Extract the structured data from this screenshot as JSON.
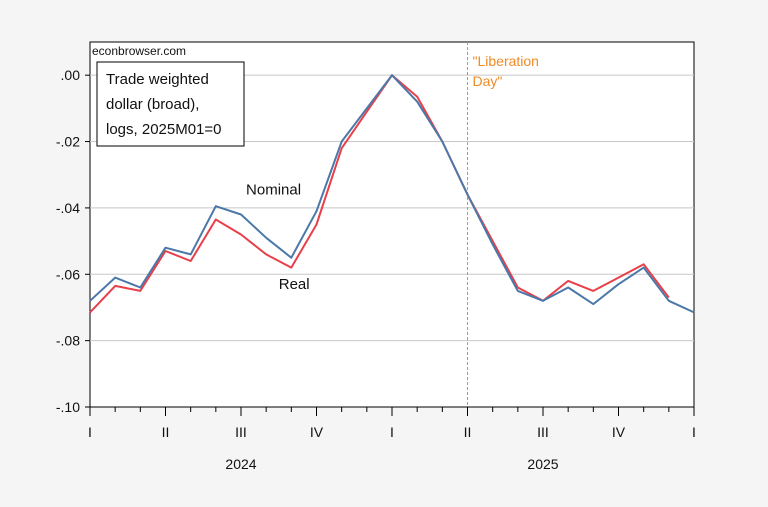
{
  "chart_data": {
    "type": "line",
    "source_note": "econbrowser.com",
    "legend_lines": [
      "Trade weighted",
      "dollar (broad),",
      "logs, 2025M01=0"
    ],
    "ylim": [
      -0.1,
      0.01
    ],
    "yticks": [
      0.0,
      -0.02,
      -0.04,
      -0.06,
      -0.08,
      -0.1
    ],
    "ytick_labels": [
      ".00",
      "-.02",
      "-.04",
      "-.06",
      "-.08",
      "-.10"
    ],
    "grid": "horizontal",
    "x_quarter_ticks": [
      {
        "month_index": 0,
        "label": "I"
      },
      {
        "month_index": 3,
        "label": "II"
      },
      {
        "month_index": 6,
        "label": "III"
      },
      {
        "month_index": 9,
        "label": "IV"
      },
      {
        "month_index": 12,
        "label": "I"
      },
      {
        "month_index": 15,
        "label": "II"
      },
      {
        "month_index": 18,
        "label": "III"
      },
      {
        "month_index": 21,
        "label": "IV"
      },
      {
        "month_index": 24,
        "label": "I"
      }
    ],
    "x_years": [
      {
        "label": "2024",
        "center_month_index": 6
      },
      {
        "label": "2025",
        "center_month_index": 18
      }
    ],
    "x": [
      "2024M01",
      "2024M02",
      "2024M03",
      "2024M04",
      "2024M05",
      "2024M06",
      "2024M07",
      "2024M08",
      "2024M09",
      "2024M10",
      "2024M11",
      "2024M12",
      "2025M01",
      "2025M02",
      "2025M03",
      "2025M04",
      "2025M05",
      "2025M06",
      "2025M07",
      "2025M08",
      "2025M09",
      "2025M10",
      "2025M11",
      "2025M12",
      "2026M01"
    ],
    "series": [
      {
        "name": "Nominal",
        "color": "#4a78a8",
        "label_position_month": 6.2,
        "label_y": -0.036,
        "values": [
          -0.068,
          -0.061,
          -0.064,
          -0.052,
          -0.054,
          -0.0395,
          -0.042,
          -0.049,
          -0.055,
          -0.041,
          -0.02,
          -0.01,
          0.0,
          -0.008,
          -0.02,
          -0.036,
          -0.051,
          -0.065,
          -0.068,
          -0.064,
          -0.069,
          -0.063,
          -0.058,
          -0.068,
          -0.0715
        ]
      },
      {
        "name": "Real",
        "color": "#e8404a",
        "label_position_month": 7.5,
        "label_y": -0.0645,
        "values": [
          -0.0715,
          -0.0635,
          -0.065,
          -0.053,
          -0.056,
          -0.0435,
          -0.048,
          -0.054,
          -0.058,
          -0.045,
          -0.022,
          -0.011,
          0.0,
          -0.0065,
          -0.02,
          -0.036,
          -0.05,
          -0.064,
          -0.068,
          -0.062,
          -0.065,
          -0.061,
          -0.057,
          -0.067,
          null
        ]
      }
    ],
    "annotation": {
      "lines": [
        "\"Liberation",
        "Day\""
      ],
      "month_index": 15,
      "color": "#f08a24"
    }
  }
}
